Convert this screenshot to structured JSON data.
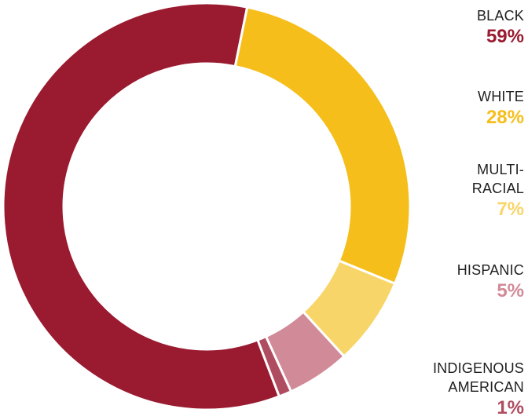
{
  "chart_data": {
    "type": "pie",
    "donut": true,
    "categories": [
      "BLACK",
      "WHITE",
      "MULTI-\nRACIAL",
      "HISPANIC",
      "INDIGENOUS\nAMERICAN"
    ],
    "values": [
      59,
      28,
      7,
      5,
      1
    ],
    "value_labels": [
      "59%",
      "28%",
      "7%",
      "5%",
      "1%"
    ],
    "colors": [
      "#9a1a30",
      "#f5be1b",
      "#f8d568",
      "#d18a97",
      "#b04c60"
    ],
    "legend_position": "right"
  }
}
